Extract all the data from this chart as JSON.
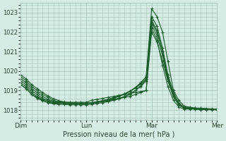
{
  "bg_color": "#d4ece4",
  "grid_color": "#a8c8bc",
  "line_color": "#1a5c2a",
  "marker_color": "#1a5c2a",
  "xlabel": "Pression niveau de la mer( hPa )",
  "ylim": [
    1017.5,
    1023.5
  ],
  "yticks": [
    1018,
    1019,
    1020,
    1021,
    1022,
    1023
  ],
  "xtick_labels": [
    "Dim",
    "Lun",
    "Mar",
    "Mer"
  ],
  "xtick_positions": [
    0,
    48,
    96,
    144
  ],
  "series": [
    {
      "x": [
        0,
        4,
        8,
        12,
        16,
        20,
        24,
        28,
        32,
        36,
        40,
        44,
        48,
        52,
        56,
        60,
        64,
        68,
        72,
        76,
        80,
        84,
        88,
        92,
        96,
        100,
        104,
        108,
        112,
        116,
        120,
        124,
        128,
        132,
        136,
        140,
        144
      ],
      "y": [
        1019.5,
        1019.3,
        1019.0,
        1018.8,
        1018.6,
        1018.5,
        1018.4,
        1018.4,
        1018.4,
        1018.4,
        1018.4,
        1018.4,
        1018.4,
        1018.5,
        1018.55,
        1018.6,
        1018.65,
        1018.7,
        1018.75,
        1018.8,
        1018.85,
        1018.9,
        1018.95,
        1019.0,
        1022.0,
        1021.5,
        1020.5,
        1019.5,
        1018.7,
        1018.3,
        1018.1,
        1018.1,
        1018.1,
        1018.05,
        1018.05,
        1018.05,
        1018.05
      ]
    },
    {
      "x": [
        0,
        4,
        8,
        12,
        16,
        20,
        24,
        28,
        32,
        36,
        40,
        44,
        48,
        52,
        56,
        60,
        64,
        68,
        72,
        76,
        80,
        84,
        88,
        92,
        96,
        100,
        104,
        108,
        112,
        116,
        120,
        124,
        128,
        132,
        136,
        140,
        144
      ],
      "y": [
        1019.3,
        1019.1,
        1018.8,
        1018.65,
        1018.5,
        1018.4,
        1018.35,
        1018.35,
        1018.35,
        1018.35,
        1018.35,
        1018.35,
        1018.35,
        1018.38,
        1018.42,
        1018.46,
        1018.5,
        1018.55,
        1018.6,
        1018.65,
        1018.7,
        1018.8,
        1018.9,
        1019.0,
        1022.2,
        1021.6,
        1020.3,
        1019.2,
        1018.5,
        1018.15,
        1018.05,
        1018.05,
        1018.05,
        1018.02,
        1018.02,
        1018.02,
        1018.02
      ]
    },
    {
      "x": [
        0,
        4,
        8,
        12,
        16,
        20,
        24,
        28,
        32,
        36,
        40,
        44,
        48,
        52,
        56,
        60,
        64,
        68,
        72,
        76,
        80,
        84,
        88,
        92,
        96,
        100,
        104,
        108,
        112,
        116,
        120,
        124,
        128,
        132,
        136,
        140,
        144
      ],
      "y": [
        1019.6,
        1019.4,
        1019.1,
        1018.9,
        1018.7,
        1018.55,
        1018.45,
        1018.4,
        1018.38,
        1018.36,
        1018.35,
        1018.35,
        1018.35,
        1018.38,
        1018.42,
        1018.46,
        1018.52,
        1018.6,
        1018.7,
        1018.8,
        1018.95,
        1019.15,
        1019.4,
        1019.7,
        1023.2,
        1022.8,
        1022.0,
        1020.5,
        1019.0,
        1018.5,
        1018.2,
        1018.15,
        1018.1,
        1018.1,
        1018.08,
        1018.06,
        1018.05
      ]
    },
    {
      "x": [
        0,
        4,
        8,
        12,
        16,
        20,
        24,
        28,
        32,
        36,
        40,
        44,
        48,
        52,
        56,
        60,
        64,
        68,
        72,
        76,
        80,
        84,
        88,
        92,
        96,
        100,
        104,
        108,
        112,
        116,
        120,
        124,
        128,
        132,
        136,
        140,
        144
      ],
      "y": [
        1019.4,
        1019.2,
        1018.9,
        1018.7,
        1018.55,
        1018.45,
        1018.38,
        1018.35,
        1018.33,
        1018.32,
        1018.32,
        1018.32,
        1018.32,
        1018.35,
        1018.38,
        1018.42,
        1018.47,
        1018.53,
        1018.6,
        1018.7,
        1018.82,
        1019.0,
        1019.2,
        1019.5,
        1022.5,
        1022.0,
        1021.0,
        1019.7,
        1018.8,
        1018.3,
        1018.1,
        1018.08,
        1018.06,
        1018.05,
        1018.04,
        1018.04,
        1018.04
      ]
    },
    {
      "x": [
        0,
        4,
        8,
        12,
        16,
        20,
        24,
        28,
        32,
        36,
        40,
        44,
        48,
        52,
        56,
        60,
        64,
        68,
        72,
        76,
        80,
        84,
        88,
        92,
        96,
        100,
        104,
        108,
        112,
        116,
        120,
        124,
        128,
        132,
        136,
        140,
        144
      ],
      "y": [
        1019.7,
        1019.5,
        1019.2,
        1019.0,
        1018.8,
        1018.65,
        1018.5,
        1018.42,
        1018.38,
        1018.36,
        1018.35,
        1018.35,
        1018.35,
        1018.38,
        1018.42,
        1018.48,
        1018.55,
        1018.63,
        1018.72,
        1018.83,
        1018.97,
        1019.15,
        1019.4,
        1019.7,
        1022.8,
        1022.3,
        1021.2,
        1019.8,
        1018.9,
        1018.35,
        1018.15,
        1018.1,
        1018.08,
        1018.06,
        1018.05,
        1018.04,
        1018.04
      ]
    },
    {
      "x": [
        0,
        4,
        8,
        12,
        16,
        20,
        24,
        28,
        32,
        36,
        40,
        44,
        48,
        52,
        56,
        60,
        64,
        68,
        72,
        76,
        80,
        84,
        88,
        92,
        96,
        100,
        104,
        108,
        112,
        116,
        120,
        124,
        128,
        132,
        136,
        140,
        144
      ],
      "y": [
        1019.3,
        1019.1,
        1018.8,
        1018.6,
        1018.48,
        1018.38,
        1018.32,
        1018.3,
        1018.28,
        1018.27,
        1018.27,
        1018.27,
        1018.27,
        1018.3,
        1018.34,
        1018.38,
        1018.43,
        1018.5,
        1018.57,
        1018.67,
        1018.8,
        1019.0,
        1019.25,
        1019.55,
        1022.6,
        1022.1,
        1021.0,
        1019.6,
        1018.7,
        1018.25,
        1018.1,
        1018.07,
        1018.05,
        1018.04,
        1018.03,
        1018.03,
        1018.03
      ]
    },
    {
      "x": [
        0,
        4,
        8,
        12,
        16,
        20,
        24,
        28,
        32,
        36,
        40,
        44,
        48,
        52,
        56,
        60,
        64,
        68,
        72,
        76,
        80,
        84,
        88,
        92,
        96,
        100,
        104,
        108,
        112,
        116,
        120,
        124,
        128,
        132,
        136,
        140,
        144
      ],
      "y": [
        1019.8,
        1019.6,
        1019.3,
        1019.1,
        1018.9,
        1018.72,
        1018.58,
        1018.48,
        1018.42,
        1018.38,
        1018.36,
        1018.35,
        1018.35,
        1018.38,
        1018.42,
        1018.48,
        1018.55,
        1018.63,
        1018.72,
        1018.83,
        1018.96,
        1019.12,
        1019.33,
        1019.6,
        1022.4,
        1021.8,
        1020.8,
        1019.5,
        1018.7,
        1018.28,
        1018.12,
        1018.08,
        1018.06,
        1018.05,
        1018.04,
        1018.04,
        1018.04
      ]
    }
  ]
}
